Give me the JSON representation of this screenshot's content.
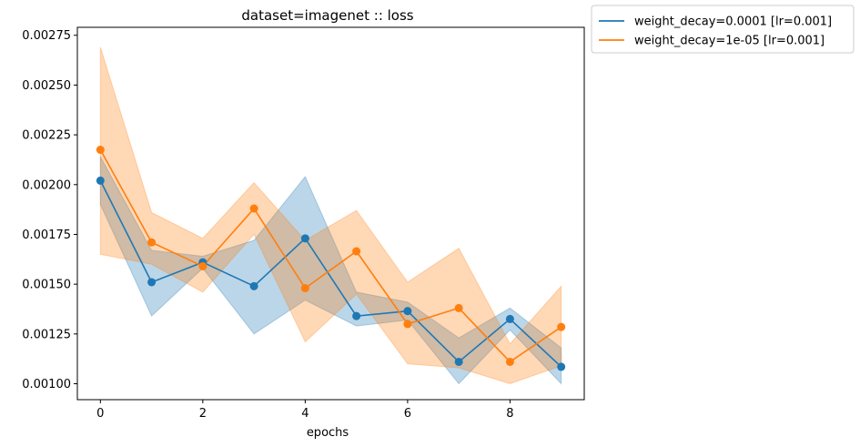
{
  "chart_data": {
    "type": "line",
    "title": "dataset=imagenet :: loss",
    "xlabel": "epochs",
    "ylabel": "",
    "x": [
      0,
      1,
      2,
      3,
      4,
      5,
      6,
      7,
      8,
      9
    ],
    "xlim": [
      -0.45,
      9.45
    ],
    "ylim": [
      0.00092,
      0.00279
    ],
    "x_ticks": [
      0,
      2,
      4,
      6,
      8
    ],
    "x_tick_labels": [
      "0",
      "2",
      "4",
      "6",
      "8"
    ],
    "y_ticks": [
      0.001,
      0.00125,
      0.0015,
      0.00175,
      0.002,
      0.00225,
      0.0025,
      0.00275
    ],
    "y_tick_labels": [
      "0.00100",
      "0.00125",
      "0.00150",
      "0.00175",
      "0.00200",
      "0.00225",
      "0.00250",
      "0.00275"
    ],
    "grid": false,
    "legend_placement": "outside-top-right",
    "series": [
      {
        "name": "weight_decay=0.0001 [lr=0.001]",
        "color": "#1f77b4",
        "values": [
          0.00202,
          0.00151,
          0.00161,
          0.00149,
          0.00173,
          0.00134,
          0.001365,
          0.00111,
          0.001325,
          0.001085
        ],
        "upper": [
          0.00214,
          0.00167,
          0.00164,
          0.00172,
          0.00204,
          0.00146,
          0.00141,
          0.00123,
          0.00138,
          0.00118
        ],
        "lower": [
          0.0019,
          0.00134,
          0.00158,
          0.00125,
          0.00142,
          0.00129,
          0.00132,
          0.001,
          0.00127,
          0.001
        ]
      },
      {
        "name": "weight_decay=1e-05 [lr=0.001]",
        "color": "#ff7f0e",
        "values": [
          0.002175,
          0.00171,
          0.00159,
          0.00188,
          0.00148,
          0.001665,
          0.0013,
          0.00138,
          0.00111,
          0.001285
        ],
        "upper": [
          0.00269,
          0.00186,
          0.00173,
          0.00201,
          0.00172,
          0.00187,
          0.00151,
          0.00168,
          0.0012,
          0.00149
        ],
        "lower": [
          0.00165,
          0.0016,
          0.00146,
          0.00175,
          0.00121,
          0.00145,
          0.0011,
          0.00108,
          0.001,
          0.00109
        ]
      }
    ]
  }
}
